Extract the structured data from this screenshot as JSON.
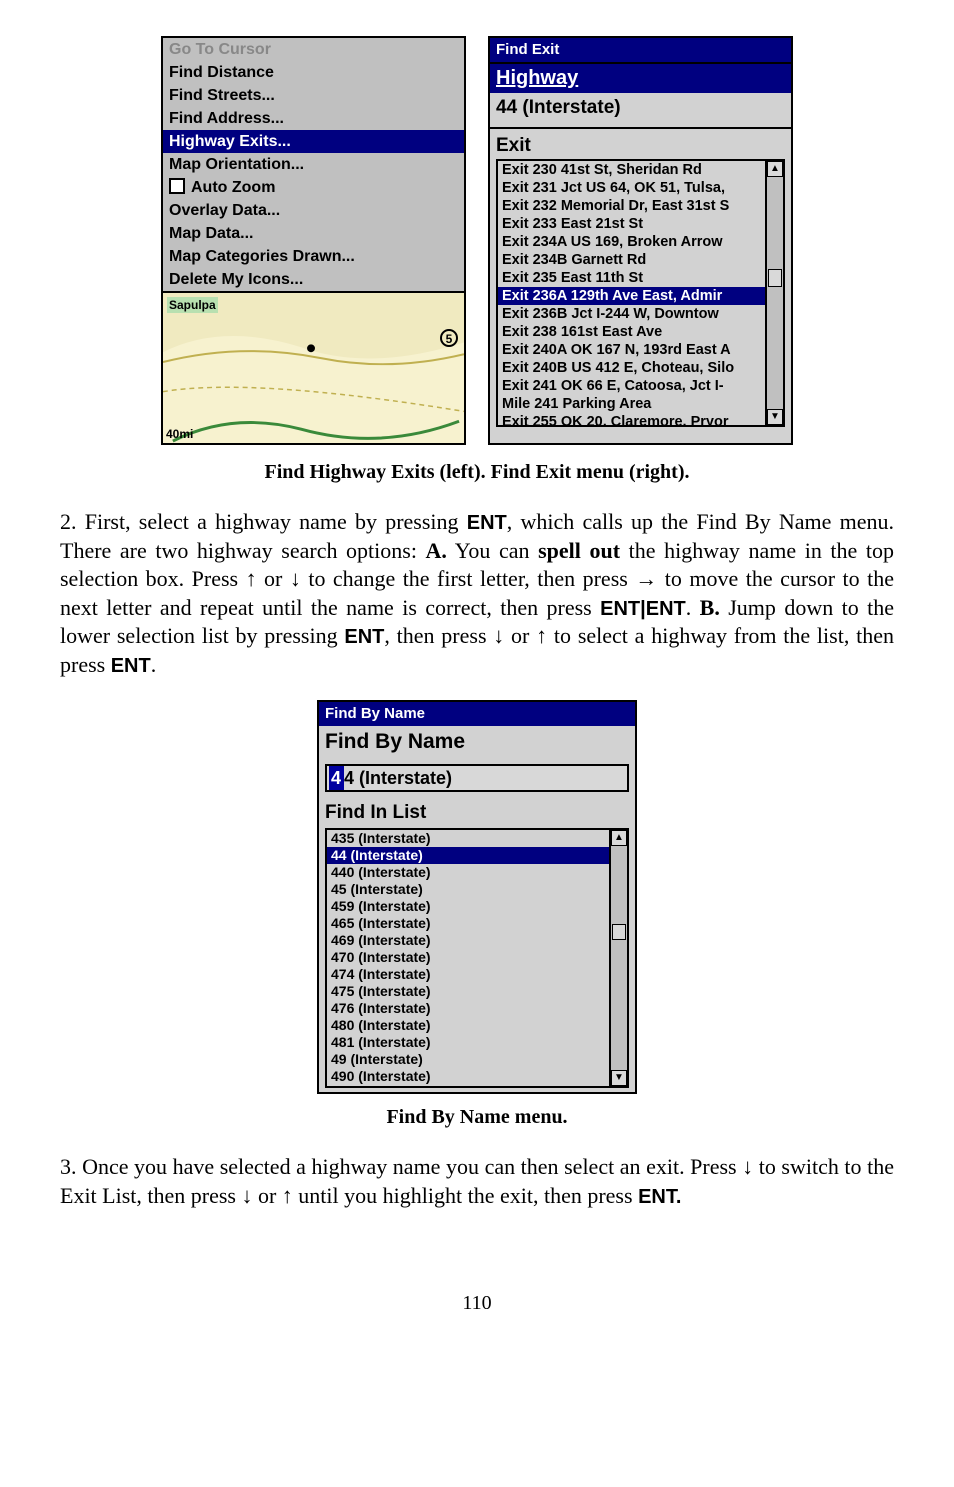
{
  "fig1": {
    "leftMenu": [
      {
        "label": "Go To Cursor",
        "class": "dim"
      },
      {
        "label": "Find Distance",
        "class": ""
      },
      {
        "label": "Find Streets...",
        "class": ""
      },
      {
        "label": "Find Address...",
        "class": ""
      },
      {
        "label": "Highway Exits...",
        "class": "hl"
      },
      {
        "label": "Map Orientation...",
        "class": ""
      },
      {
        "label": "Auto Zoom",
        "class": "checkbox"
      },
      {
        "label": "Overlay Data...",
        "class": ""
      },
      {
        "label": "Map Data...",
        "class": ""
      },
      {
        "label": "Map Categories Drawn...",
        "class": ""
      },
      {
        "label": "Delete My Icons...",
        "class": ""
      }
    ],
    "mapCity": "Sapulpa",
    "mapScale": "40mi",
    "mapMarker": "5",
    "right": {
      "title": "Find Exit",
      "h1": "Highway",
      "hwy": "44 (Interstate)",
      "h2": "Exit",
      "items": [
        {
          "t": "Exit 230 41st St, Sheridan Rd"
        },
        {
          "t": "Exit 231 Jct US 64, OK 51, Tulsa,"
        },
        {
          "t": "Exit 232 Memorial Dr, East 31st S"
        },
        {
          "t": "Exit 233 East 21st St"
        },
        {
          "t": "Exit 234A US 169, Broken Arrow"
        },
        {
          "t": "Exit 234B Garnett Rd"
        },
        {
          "t": "Exit 235 East 11th St"
        },
        {
          "t": "Exit 236A 129th Ave East, Admir",
          "sel": true
        },
        {
          "t": "Exit 236B Jct I-244 W, Downtow"
        },
        {
          "t": "Exit 238 161st East Ave"
        },
        {
          "t": "Exit 240A OK 167 N, 193rd East A"
        },
        {
          "t": "Exit 240B US 412 E, Choteau, Silo"
        },
        {
          "t": "Exit 241 OK 66 E, Catoosa, Jct I-"
        },
        {
          "t": "Mile 241 Parking Area"
        },
        {
          "t": "Exit 255 OK 20, Claremore, Pryor"
        }
      ]
    },
    "caption": "Find Highway Exits (left). Find Exit menu (right)."
  },
  "para1_a": "2. First, select a highway name by pressing ",
  "para1_b": ", which calls up the Find By Name menu. There are two highway search options: ",
  "para1_A": "A.",
  "para1_c": " You can ",
  "para1_spell": "spell out",
  "para1_d": " the highway name in the top selection box. Press ↑ or ↓ to change the first letter, then press → to move the cursor to the next letter and repeat until the name is correct, then press ",
  "para1_ee": "ENT|ENT",
  "para1_e": ". ",
  "para1_B": "B.",
  "para1_f": " Jump down to the lower selection list by pressing ",
  "para1_g": ", then press ↓ or ↑ to select a highway from the list, then press ",
  "ENT": "ENT",
  "fig2": {
    "title": "Find By Name",
    "label1": "Find By Name",
    "cursor": "4",
    "inputRest": "4 (Interstate)",
    "label2": "Find In List",
    "items": [
      {
        "t": "435 (Interstate)"
      },
      {
        "t": "44 (Interstate)",
        "sel": true
      },
      {
        "t": "440 (Interstate)"
      },
      {
        "t": "45 (Interstate)"
      },
      {
        "t": "459 (Interstate)"
      },
      {
        "t": "465 (Interstate)"
      },
      {
        "t": "469 (Interstate)"
      },
      {
        "t": "470 (Interstate)"
      },
      {
        "t": "474 (Interstate)"
      },
      {
        "t": "475 (Interstate)"
      },
      {
        "t": "476 (Interstate)"
      },
      {
        "t": "480 (Interstate)"
      },
      {
        "t": "481 (Interstate)"
      },
      {
        "t": "49 (Interstate)"
      },
      {
        "t": "490 (Interstate)"
      }
    ],
    "caption": "Find By Name menu."
  },
  "para2_a": "3. Once you have selected a highway name you can then select an exit. Press ↓ to switch to the Exit List, then press ↓ or ↑ until you highlight the exit, then press ",
  "ENTd": "ENT.",
  "pagenum": "110"
}
